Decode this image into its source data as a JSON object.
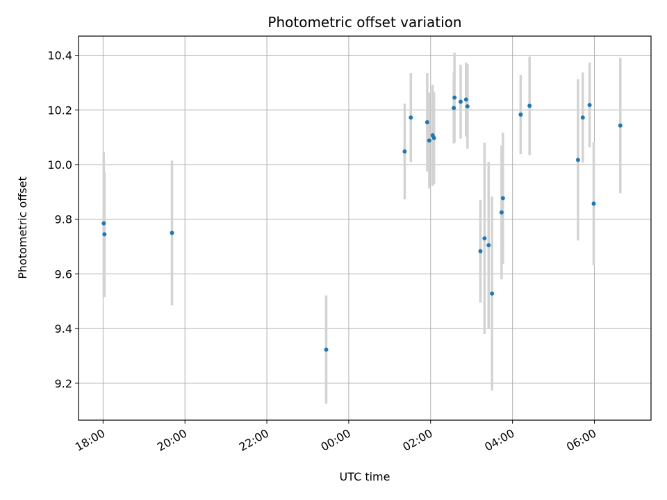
{
  "chart_data": {
    "type": "scatter",
    "title": "Photometric offset variation",
    "xlabel": "UTC time",
    "ylabel": "Photometric offset",
    "xlim": [
      "17:24",
      "07:23"
    ],
    "ylim": [
      9.065,
      10.47
    ],
    "x_ticks": [
      "18:00",
      "20:00",
      "22:00",
      "00:00",
      "02:00",
      "04:00",
      "06:00"
    ],
    "y_ticks": [
      9.2,
      9.4,
      9.6,
      9.8,
      10.0,
      10.2,
      10.4
    ],
    "grid": true,
    "colors": {
      "points": "#1f77b4",
      "errorbars": "#d3d3d3",
      "grid": "#b0b0b0"
    },
    "points": [
      {
        "x": "18:01",
        "y": 9.785,
        "err": 0.26
      },
      {
        "x": "18:02",
        "y": 9.745,
        "err": 0.23
      },
      {
        "x": "19:41",
        "y": 9.75,
        "err": 0.265
      },
      {
        "x": "23:27",
        "y": 9.323,
        "err": 0.198
      },
      {
        "x": "01:22",
        "y": 10.048,
        "err": 0.175
      },
      {
        "x": "01:31",
        "y": 10.172,
        "err": 0.163
      },
      {
        "x": "01:55",
        "y": 10.155,
        "err": 0.18
      },
      {
        "x": "01:58",
        "y": 10.088,
        "err": 0.175
      },
      {
        "x": "02:03",
        "y": 10.107,
        "err": 0.185
      },
      {
        "x": "02:05",
        "y": 10.097,
        "err": 0.168
      },
      {
        "x": "02:34",
        "y": 10.207,
        "err": 0.13
      },
      {
        "x": "02:35",
        "y": 10.245,
        "err": 0.165
      },
      {
        "x": "02:44",
        "y": 10.23,
        "err": 0.135
      },
      {
        "x": "02:52",
        "y": 10.238,
        "err": 0.135
      },
      {
        "x": "02:54",
        "y": 10.213,
        "err": 0.155
      },
      {
        "x": "03:13",
        "y": 9.683,
        "err": 0.188
      },
      {
        "x": "03:19",
        "y": 9.73,
        "err": 0.35
      },
      {
        "x": "03:25",
        "y": 9.705,
        "err": 0.305
      },
      {
        "x": "03:30",
        "y": 9.528,
        "err": 0.355
      },
      {
        "x": "03:44",
        "y": 9.825,
        "err": 0.245
      },
      {
        "x": "03:46",
        "y": 9.877,
        "err": 0.24
      },
      {
        "x": "04:12",
        "y": 10.183,
        "err": 0.145
      },
      {
        "x": "04:25",
        "y": 10.215,
        "err": 0.18
      },
      {
        "x": "05:36",
        "y": 10.017,
        "err": 0.295
      },
      {
        "x": "05:43",
        "y": 10.172,
        "err": 0.165
      },
      {
        "x": "05:53",
        "y": 10.218,
        "err": 0.155
      },
      {
        "x": "05:59",
        "y": 9.857,
        "err": 0.225
      },
      {
        "x": "06:38",
        "y": 10.143,
        "err": 0.248
      }
    ]
  }
}
